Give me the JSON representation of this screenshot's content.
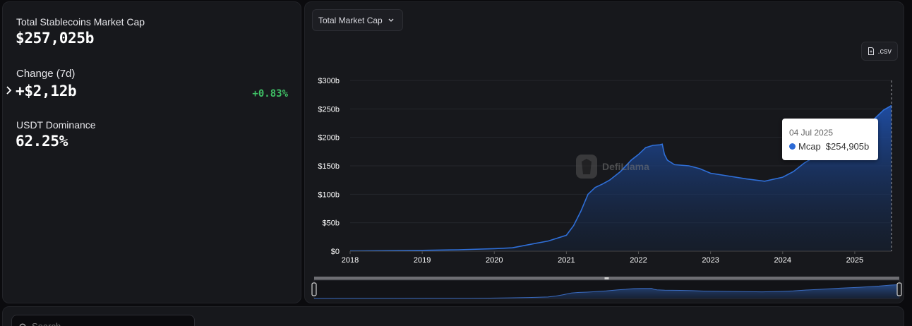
{
  "stats": {
    "total_label": "Total Stablecoins Market Cap",
    "total_value": "$257,025b",
    "change_label": "Change (7d)",
    "change_value": "+$2,12b",
    "change_pct": "+0.83%",
    "dominance_label": "USDT Dominance",
    "dominance_value": "62.25%"
  },
  "chart_controls": {
    "dropdown_label": "Total Market Cap",
    "csv_label": ".csv",
    "watermark": "DefiLlama"
  },
  "tooltip": {
    "date": "04 Jul 2025",
    "series": "Mcap",
    "value": "$254,905b"
  },
  "search": {
    "placeholder": "Search"
  },
  "colors": {
    "line": "#2f6fd8",
    "positive": "#3fbf65",
    "panel": "#17181c"
  },
  "chart_data": {
    "type": "area",
    "title": "",
    "xlabel": "",
    "ylabel": "",
    "y_ticks": [
      "$0",
      "$50b",
      "$100b",
      "$150b",
      "$200b",
      "$250b",
      "$300b"
    ],
    "x_ticks": [
      "2018",
      "2019",
      "2020",
      "2021",
      "2022",
      "2023",
      "2024",
      "2025"
    ],
    "ylim": [
      0,
      300
    ],
    "grid": true,
    "series": [
      {
        "name": "Mcap",
        "x": [
          2018.0,
          2018.5,
          2019.0,
          2019.5,
          2020.0,
          2020.25,
          2020.5,
          2020.75,
          2021.0,
          2021.1,
          2021.2,
          2021.3,
          2021.4,
          2021.5,
          2021.6,
          2021.75,
          2021.9,
          2022.0,
          2022.1,
          2022.2,
          2022.3,
          2022.33,
          2022.36,
          2022.4,
          2022.5,
          2022.7,
          2022.85,
          2023.0,
          2023.25,
          2023.5,
          2023.75,
          2024.0,
          2024.15,
          2024.3,
          2024.5,
          2024.75,
          2025.0,
          2025.25,
          2025.4,
          2025.51
        ],
        "values": [
          0.5,
          1.0,
          1.5,
          2.5,
          4.5,
          6,
          12,
          18,
          28,
          45,
          70,
          100,
          112,
          118,
          125,
          140,
          160,
          170,
          182,
          186,
          187,
          188,
          170,
          160,
          152,
          150,
          145,
          137,
          132,
          127,
          123,
          130,
          140,
          155,
          170,
          190,
          207,
          230,
          248,
          256
        ]
      }
    ]
  }
}
